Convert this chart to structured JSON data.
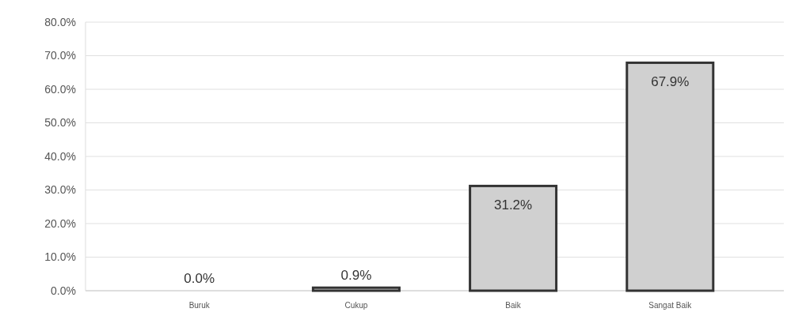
{
  "chart_data": {
    "type": "bar",
    "categories": [
      "Buruk",
      "Cukup",
      "Baik",
      "Sangat Baik"
    ],
    "values": [
      0.0,
      0.9,
      31.2,
      67.9
    ],
    "color": "#d0d0d0",
    "value_labels": [
      "0.0%",
      "0.9%",
      "31.2%",
      "67.9%"
    ],
    "ylim": [
      0,
      80
    ],
    "yticks": [
      {
        "value": 0,
        "label": "0.0%"
      },
      {
        "value": 10,
        "label": "10.0%"
      },
      {
        "value": 20,
        "label": "20.0%"
      },
      {
        "value": 30,
        "label": "30.0%"
      },
      {
        "value": 40,
        "label": "40.0%"
      },
      {
        "value": 50,
        "label": "50.0%"
      },
      {
        "value": 60,
        "label": "60.0%"
      },
      {
        "value": 70,
        "label": "70.0%"
      },
      {
        "value": 80,
        "label": "80.0%"
      }
    ],
    "grid": "y"
  }
}
